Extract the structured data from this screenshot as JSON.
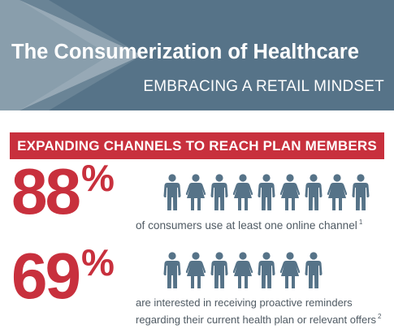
{
  "header": {
    "title": "The Consumerization of Healthcare",
    "subtitle": "EMBRACING A RETAIL MINDSET"
  },
  "section": {
    "heading": "EXPANDING CHANNELS TO REACH PLAN MEMBERS"
  },
  "stats": [
    {
      "value": "88",
      "percent_sign": "%",
      "line1": "of consumers use at least one online channel",
      "line2": "",
      "footnote": "1",
      "icons": [
        "man-icon",
        "woman-icon",
        "man-icon",
        "woman-icon",
        "man-icon",
        "woman-icon",
        "man-icon",
        "woman-icon",
        "man-icon"
      ]
    },
    {
      "value": "69",
      "percent_sign": "%",
      "line1": "are interested in receiving proactive reminders",
      "line2": "regarding their current health plan or relevant offers",
      "footnote": "2",
      "icons": [
        "man-icon",
        "woman-icon",
        "man-icon",
        "woman-icon",
        "man-icon",
        "woman-icon",
        "man-icon"
      ]
    }
  ],
  "colors": {
    "banner": "#567388",
    "accent": "#c8303d",
    "icon": "#567388",
    "text": "#4f5a63"
  }
}
